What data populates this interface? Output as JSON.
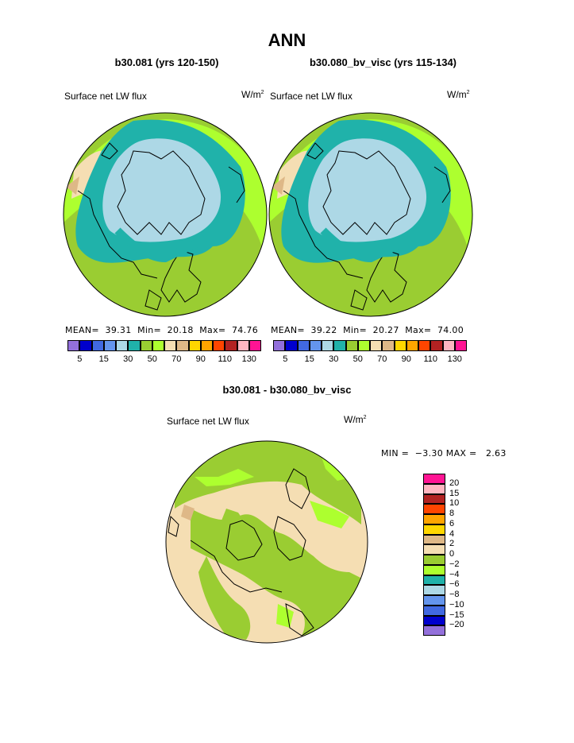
{
  "title": "ANN",
  "panels": [
    {
      "case": "b30.081 (yrs 120-150)",
      "variable": "Surface net LW flux",
      "units_base": "W/m",
      "units_exp": "2",
      "stats": {
        "mean_label": "MEAN=",
        "mean": "39.31",
        "min_label": "Min=",
        "min": "20.18",
        "max_label": "Max=",
        "max": "74.76"
      }
    },
    {
      "case": "b30.080_bv_visc (yrs 115-134)",
      "variable": "Surface net LW flux",
      "units_base": "W/m",
      "units_exp": "2",
      "stats": {
        "mean_label": "MEAN=",
        "mean": "39.22",
        "min_label": "Min=",
        "min": "20.27",
        "max_label": "Max=",
        "max": "74.00"
      }
    }
  ],
  "colorbar": {
    "colors": [
      "#9370db",
      "#0000cd",
      "#4169e1",
      "#6495ed",
      "#add8e6",
      "#20b2aa",
      "#9acd32",
      "#adff2f",
      "#f5deb3",
      "#deb887",
      "#ffd700",
      "#ffa500",
      "#ff4500",
      "#b22222",
      "#ffb6c1",
      "#ff1493"
    ],
    "tick_labels": [
      "5",
      "15",
      "30",
      "50",
      "70",
      "90",
      "110",
      "130"
    ]
  },
  "difference": {
    "title": "b30.081 - b30.080_bv_visc",
    "variable": "Surface net LW flux",
    "units_base": "W/m",
    "units_exp": "2",
    "stats": {
      "min_label": "MIN =",
      "min": "−3.30",
      "max_label": "MAX =",
      "max": "2.63"
    },
    "colorbar": {
      "colors": [
        "#ff1493",
        "#ffb6c1",
        "#b22222",
        "#ff4500",
        "#ffa500",
        "#ffd700",
        "#deb887",
        "#f5deb3",
        "#9acd32",
        "#adff2f",
        "#20b2aa",
        "#add8e6",
        "#6495ed",
        "#4169e1",
        "#0000cd",
        "#9370db"
      ],
      "labels": [
        "20",
        "15",
        "10",
        "8",
        "6",
        "4",
        "2",
        "0",
        "−2",
        "−4",
        "−6",
        "−8",
        "−10",
        "−15",
        "−20"
      ]
    }
  }
}
